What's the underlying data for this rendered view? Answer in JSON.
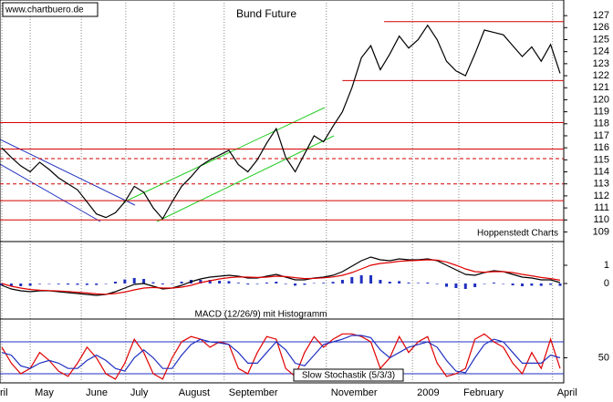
{
  "chart_data": [
    {
      "type": "line",
      "title": "Bund Future",
      "watermark": "www.chartbuero.de",
      "annotation": "Hoppenstedt Charts",
      "series": [
        {
          "color": "#000000",
          "values": [
            116,
            115.2,
            114.5,
            114,
            114.8,
            114.2,
            113.5,
            113,
            112.5,
            111.5,
            110.5,
            110.2,
            110.6,
            111.5,
            112.8,
            112.3,
            111,
            110.1,
            111.5,
            112.8,
            113.6,
            114.5,
            115,
            115.4,
            115.8,
            114.6,
            114,
            115,
            116.4,
            117.6,
            115.2,
            114,
            115.5,
            117,
            116.5,
            117.8,
            119,
            121,
            123.5,
            124.5,
            122.5,
            123.8,
            125.3,
            124.3,
            125,
            126.2,
            125,
            123.2,
            122.4,
            122,
            123.8,
            125.8,
            125.6,
            125.4,
            124.5,
            123.6,
            124.4,
            123.2,
            124.6,
            122.2
          ]
        }
      ],
      "levels": [
        {
          "value": 126.5,
          "start": 40.4
        },
        {
          "value": 121.6,
          "start": 36
        },
        {
          "value": 118.1
        },
        {
          "value": 115.9
        },
        {
          "value": 115.1,
          "dashed": true
        },
        {
          "value": 113,
          "dashed": true
        },
        {
          "value": 111.6
        },
        {
          "value": 110
        }
      ],
      "level_color": "#d40000",
      "ylim": [
        108.2,
        128.3
      ],
      "yticks": [
        109,
        110,
        111,
        112,
        113,
        114,
        115,
        116,
        117,
        118,
        119,
        120,
        121,
        122,
        123,
        124,
        125,
        126,
        127
      ]
    },
    {
      "type": "line",
      "title": "MACD (12/26/9) mit Histogramm",
      "series": [
        {
          "color": "#000000",
          "values": [
            -0.1,
            -0.3,
            -0.4,
            -0.45,
            -0.4,
            -0.4,
            -0.45,
            -0.5,
            -0.55,
            -0.6,
            -0.65,
            -0.6,
            -0.45,
            -0.25,
            -0.05,
            0,
            -0.15,
            -0.3,
            -0.25,
            -0.1,
            0.1,
            0.25,
            0.35,
            0.4,
            0.45,
            0.4,
            0.3,
            0.3,
            0.4,
            0.5,
            0.35,
            0.2,
            0.2,
            0.3,
            0.35,
            0.45,
            0.65,
            0.95,
            1.25,
            1.45,
            1.3,
            1.25,
            1.35,
            1.3,
            1.3,
            1.35,
            1.25,
            1.0,
            0.75,
            0.5,
            0.45,
            0.6,
            0.7,
            0.65,
            0.5,
            0.35,
            0.3,
            0.2,
            0.2,
            0.05
          ]
        },
        {
          "color": "#e00000",
          "values": [
            0,
            -0.15,
            -0.25,
            -0.33,
            -0.37,
            -0.39,
            -0.41,
            -0.44,
            -0.48,
            -0.52,
            -0.57,
            -0.59,
            -0.55,
            -0.47,
            -0.35,
            -0.25,
            -0.22,
            -0.25,
            -0.25,
            -0.2,
            -0.1,
            0.05,
            0.15,
            0.25,
            0.32,
            0.36,
            0.35,
            0.33,
            0.35,
            0.4,
            0.38,
            0.32,
            0.27,
            0.28,
            0.31,
            0.36,
            0.45,
            0.6,
            0.8,
            1.0,
            1.1,
            1.15,
            1.22,
            1.25,
            1.27,
            1.3,
            1.28,
            1.18,
            1.0,
            0.8,
            0.65,
            0.62,
            0.65,
            0.65,
            0.6,
            0.5,
            0.42,
            0.33,
            0.27,
            0.18
          ]
        }
      ],
      "histogram": {
        "color": "#2030c0",
        "values": [
          -0.1,
          -0.15,
          -0.15,
          -0.12,
          -0.03,
          -0.01,
          -0.04,
          -0.06,
          -0.07,
          -0.08,
          -0.08,
          -0.01,
          0.1,
          0.22,
          0.3,
          0.25,
          0.07,
          -0.05,
          0,
          0.1,
          0.2,
          0.2,
          0.2,
          0.15,
          0.13,
          0.04,
          -0.05,
          -0.03,
          0.05,
          0.1,
          -0.03,
          -0.12,
          -0.07,
          0.02,
          0.04,
          0.09,
          0.2,
          0.35,
          0.45,
          0.45,
          0.2,
          0.1,
          0.13,
          0.05,
          0.03,
          0.05,
          -0.03,
          -0.18,
          -0.25,
          -0.3,
          -0.2,
          -0.02,
          0.05,
          0,
          -0.1,
          -0.15,
          -0.12,
          -0.13,
          -0.07,
          -0.13
        ]
      },
      "ylim": [
        -1.95,
        2.3
      ],
      "yticks": [
        0,
        1
      ]
    },
    {
      "type": "line",
      "title": "Slow Stochastik (5/3/3)",
      "series": [
        {
          "color": "#e00000",
          "values": [
            70,
            40,
            20,
            30,
            60,
            45,
            25,
            15,
            40,
            70,
            50,
            20,
            10,
            40,
            85,
            60,
            20,
            10,
            50,
            80,
            90,
            85,
            70,
            80,
            75,
            30,
            20,
            60,
            90,
            85,
            30,
            15,
            60,
            90,
            70,
            85,
            95,
            95,
            90,
            80,
            30,
            50,
            90,
            60,
            80,
            90,
            40,
            15,
            20,
            30,
            85,
            95,
            80,
            70,
            40,
            20,
            60,
            30,
            85,
            30
          ]
        },
        {
          "color": "#2030c0",
          "values": [
            60,
            55,
            35,
            30,
            40,
            45,
            40,
            30,
            30,
            45,
            55,
            45,
            30,
            25,
            50,
            65,
            50,
            30,
            30,
            55,
            75,
            85,
            80,
            78,
            75,
            60,
            40,
            40,
            60,
            80,
            65,
            40,
            35,
            55,
            75,
            80,
            85,
            92,
            92,
            88,
            65,
            50,
            60,
            70,
            75,
            80,
            70,
            45,
            25,
            22,
            50,
            75,
            85,
            80,
            60,
            40,
            40,
            40,
            55,
            50
          ]
        }
      ],
      "levels": [
        {
          "value": 80
        },
        {
          "value": 20
        }
      ],
      "level_color": "#2030c0",
      "ylim": [
        2.9,
        122.9
      ],
      "yticks": [
        50
      ],
      "xticks": [
        {
          "value": 0,
          "label": "ril"
        },
        {
          "value": 3,
          "label": "May"
        },
        {
          "value": 8.4,
          "label": "June"
        },
        {
          "value": 13.1,
          "label": "July"
        },
        {
          "value": 18.2,
          "label": "August"
        },
        {
          "value": 23.5,
          "label": "September"
        },
        {
          "value": 34.3,
          "label": "November"
        },
        {
          "value": 43.4,
          "label": "2009"
        },
        {
          "value": 48.3,
          "label": "February"
        },
        {
          "value": 58.2,
          "label": "April"
        }
      ]
    }
  ]
}
